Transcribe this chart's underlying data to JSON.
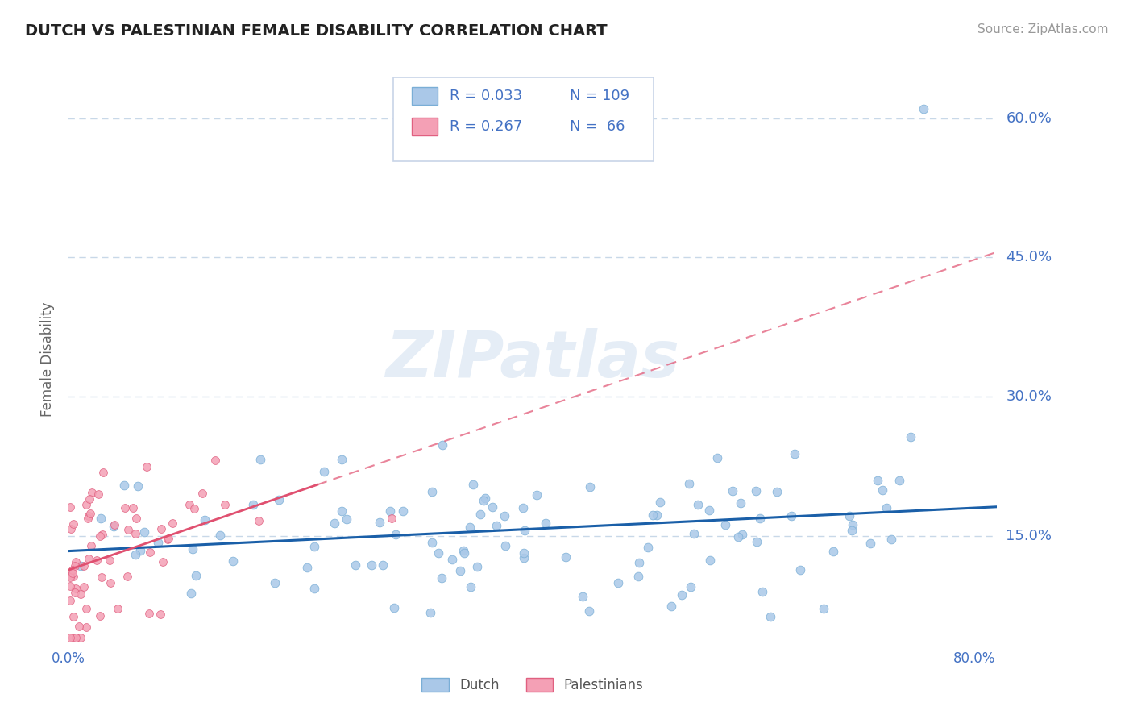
{
  "title": "DUTCH VS PALESTINIAN FEMALE DISABILITY CORRELATION CHART",
  "source": "Source: ZipAtlas.com",
  "ylabel": "Female Disability",
  "xlim": [
    0.0,
    0.82
  ],
  "ylim": [
    0.03,
    0.65
  ],
  "yticks": [
    0.15,
    0.3,
    0.45,
    0.6
  ],
  "ytick_labels": [
    "15.0%",
    "30.0%",
    "45.0%",
    "60.0%"
  ],
  "xtick_show": [
    0.0,
    0.8
  ],
  "xtick_labels": [
    "0.0%",
    "80.0%"
  ],
  "dutch_color": "#aac8e8",
  "dutch_edge": "#7aaed6",
  "palest_color": "#f4a0b5",
  "palest_edge": "#e06080",
  "trend_dutch_color": "#1a5fa8",
  "trend_palest_color": "#e05070",
  "R_dutch": 0.033,
  "N_dutch": 109,
  "R_palest": 0.267,
  "N_palest": 66,
  "watermark": "ZIPatlas",
  "background_color": "#ffffff",
  "grid_color": "#c8d8e8",
  "axis_color": "#4472c4",
  "legend_border": "#c8d4e8",
  "legend_bg": "#ffffff"
}
